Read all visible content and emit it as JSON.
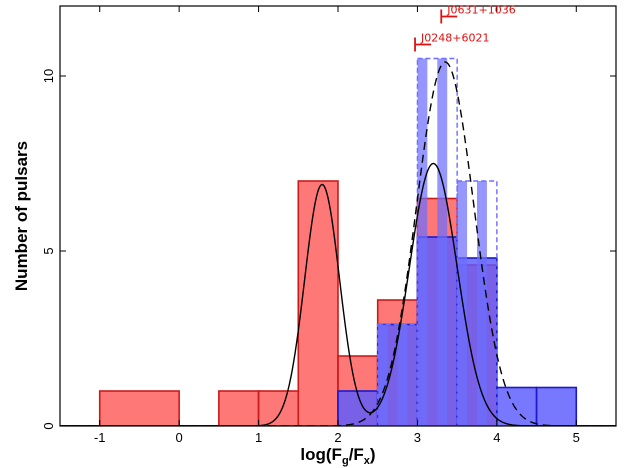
{
  "chart_data": {
    "type": "bar",
    "title": "",
    "xlabel": "log(F_g/F_x)",
    "xlabel_parts": {
      "prefix": "log(F",
      "sub1": "g",
      "mid": "/F",
      "sub2": "x",
      "suffix": ")"
    },
    "ylabel": "Number of pulsars",
    "xlim": [
      -1.5,
      5.5
    ],
    "ylim": [
      0,
      12
    ],
    "grid": false,
    "xticks": [
      -1,
      0,
      1,
      2,
      3,
      4,
      5
    ],
    "yticks": [
      0,
      5,
      10
    ],
    "series": [
      {
        "kind": "histogram",
        "color": "#ff5a5a",
        "edge_color": "#cc1a1a",
        "bins": [
          {
            "x0": -1.0,
            "x1": 0.0,
            "y": 1
          },
          {
            "x0": 0.5,
            "x1": 1.0,
            "y": 1
          },
          {
            "x0": 1.0,
            "x1": 1.5,
            "y": 1
          },
          {
            "x0": 1.5,
            "x1": 2.0,
            "y": 7
          },
          {
            "x0": 2.0,
            "x1": 2.5,
            "y": 2
          },
          {
            "x0": 2.5,
            "x1": 3.0,
            "y": 3.6
          },
          {
            "x0": 3.0,
            "x1": 3.5,
            "y": 6.5
          },
          {
            "x0": 3.5,
            "x1": 4.0,
            "y": 4.6
          }
        ]
      },
      {
        "kind": "histogram",
        "color": "#5a5aff",
        "edge_color": "#1a1acc",
        "bins": [
          {
            "x0": 2.0,
            "x1": 2.5,
            "y": 1
          },
          {
            "x0": 2.5,
            "x1": 3.0,
            "y": 2.9
          },
          {
            "x0": 3.0,
            "x1": 3.5,
            "y": 5.4
          },
          {
            "x0": 3.5,
            "x1": 4.0,
            "y": 4.8
          },
          {
            "x0": 4.0,
            "x1": 4.5,
            "y": 1.1
          },
          {
            "x0": 4.5,
            "x1": 5.0,
            "y": 1.1
          }
        ]
      },
      {
        "kind": "striped_bins",
        "color": "#6e6eff",
        "bins": [
          {
            "x0": 2.5,
            "x1": 3.0,
            "y": 2.9
          },
          {
            "x0": 3.0,
            "x1": 3.5,
            "y": 10.5
          },
          {
            "x0": 3.5,
            "x1": 4.0,
            "y": 7.0
          }
        ]
      },
      {
        "kind": "gaussian_sum",
        "style": "solid",
        "color": "#000000",
        "components": [
          {
            "amp": 6.9,
            "mu": 1.8,
            "sigma": 0.22
          },
          {
            "amp": 7.5,
            "mu": 3.2,
            "sigma": 0.3
          }
        ]
      },
      {
        "kind": "gaussian",
        "style": "dashed",
        "color": "#000000",
        "amp": 10.4,
        "mu": 3.35,
        "sigma": 0.36
      }
    ],
    "annotations": [
      {
        "label": "J0631+1036",
        "x": 3.3,
        "y": 11.7,
        "color": "#e01010"
      },
      {
        "label": "J0248+6021",
        "x": 2.97,
        "y": 10.9,
        "color": "#e01010"
      }
    ]
  }
}
